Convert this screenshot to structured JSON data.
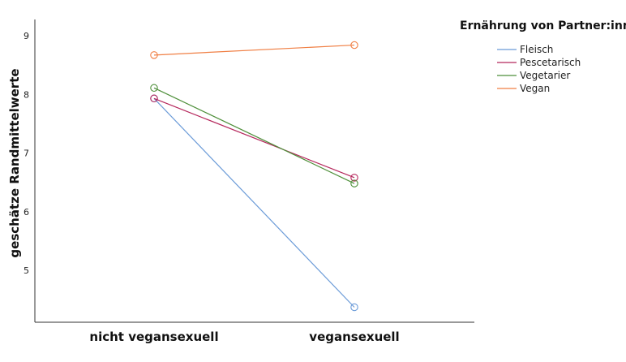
{
  "chart_data": {
    "type": "line",
    "title": "",
    "xlabel": "",
    "ylabel": "geschätze Randmittelwerte",
    "categories": [
      "nicht vegansexuell",
      "vegansexuell"
    ],
    "yticks": [
      5,
      6,
      7,
      8,
      9
    ],
    "ylim": [
      4.2,
      9.35
    ],
    "grid": false,
    "legend": {
      "title": "Ernährung von Partner:innen",
      "placement": "top-right"
    },
    "series": [
      {
        "name": "Fleisch",
        "color": "#6b9bd8",
        "values": [
          7.93,
          4.37
        ]
      },
      {
        "name": "Pescetarisch",
        "color": "#b5275c",
        "values": [
          7.93,
          6.58
        ]
      },
      {
        "name": "Vegetarier",
        "color": "#4e8f3a",
        "values": [
          8.11,
          6.48
        ]
      },
      {
        "name": "Vegan",
        "color": "#f07f44",
        "values": [
          8.67,
          8.84
        ]
      }
    ],
    "marker": "circle-open"
  }
}
